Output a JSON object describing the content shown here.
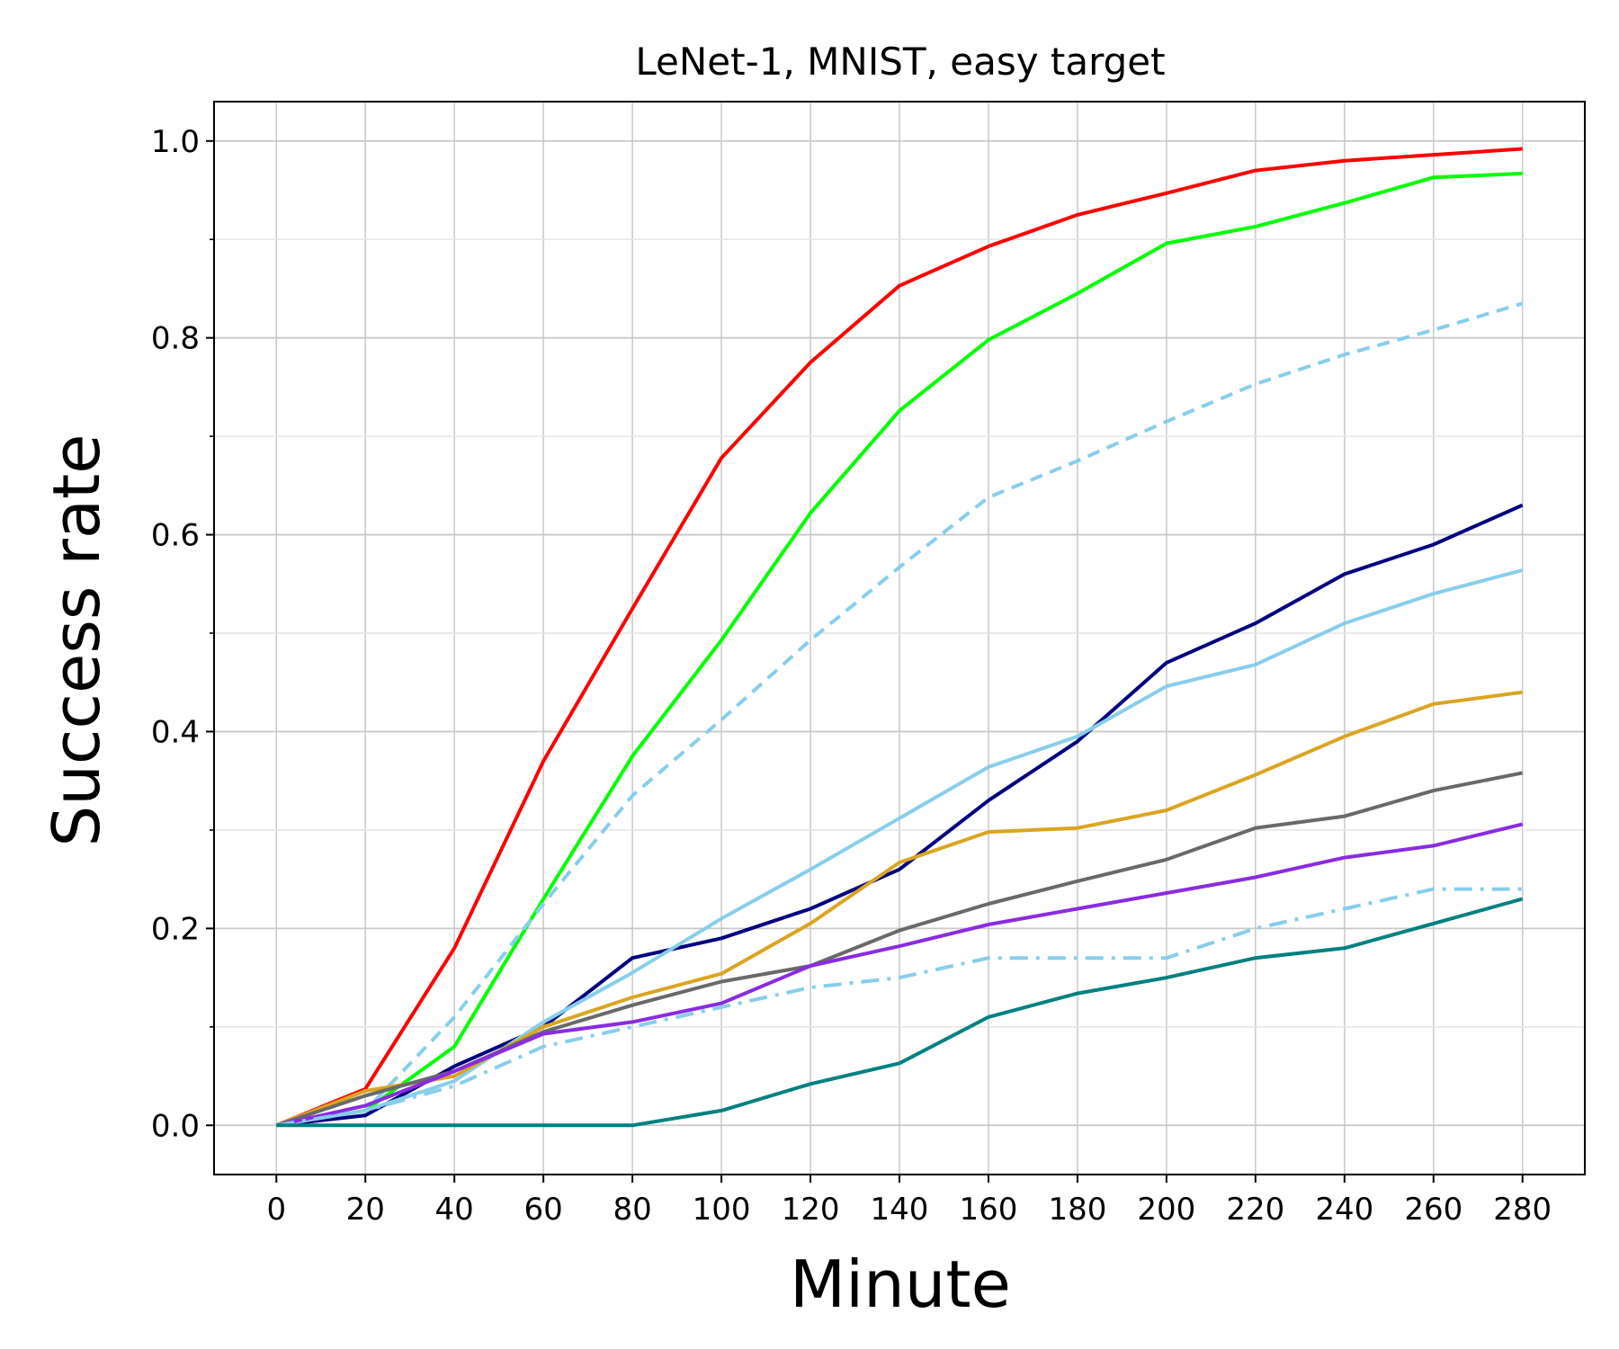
{
  "chart_data": {
    "type": "line",
    "title": "LeNet-1, MNIST, easy target",
    "xlabel": "Minute",
    "ylabel": "Success rate",
    "xlim": [
      -14,
      294
    ],
    "ylim": [
      -0.05,
      1.04
    ],
    "x": [
      0,
      20,
      40,
      60,
      80,
      100,
      120,
      140,
      160,
      180,
      200,
      220,
      240,
      260,
      280
    ],
    "xticks": [
      "0",
      "20",
      "40",
      "60",
      "80",
      "100",
      "120",
      "140",
      "160",
      "180",
      "200",
      "220",
      "240",
      "260",
      "280"
    ],
    "yticks": [
      "0.0",
      "0.2",
      "0.4",
      "0.6",
      "0.8",
      "1.0"
    ],
    "y_minor_ticks": [
      0.1,
      0.3,
      0.5,
      0.7,
      0.9
    ],
    "grid": true,
    "legend": "none",
    "series": [
      {
        "color": "#ff0000",
        "dash": "solid",
        "values": [
          0,
          0.037,
          0.18,
          0.37,
          0.525,
          0.678,
          0.775,
          0.853,
          0.893,
          0.925,
          0.947,
          0.97,
          0.98,
          0.986,
          0.992
        ]
      },
      {
        "color": "#00ff00",
        "dash": "solid",
        "values": [
          0,
          0.015,
          0.08,
          0.23,
          0.375,
          0.493,
          0.622,
          0.726,
          0.798,
          0.845,
          0.896,
          0.913,
          0.937,
          0.963,
          0.967
        ]
      },
      {
        "color": "#87ceeb",
        "dash": "dashed",
        "values": [
          0,
          0.015,
          0.11,
          0.225,
          0.335,
          0.412,
          0.493,
          0.567,
          0.638,
          0.675,
          0.715,
          0.753,
          0.783,
          0.808,
          0.835
        ]
      },
      {
        "color": "#000080",
        "dash": "solid",
        "values": [
          0,
          0.01,
          0.06,
          0.1,
          0.17,
          0.19,
          0.22,
          0.26,
          0.33,
          0.39,
          0.47,
          0.51,
          0.56,
          0.59,
          0.63
        ]
      },
      {
        "color": "#87ceeb",
        "dash": "solid",
        "values": [
          0,
          0.015,
          0.045,
          0.105,
          0.155,
          0.21,
          0.26,
          0.312,
          0.364,
          0.395,
          0.446,
          0.468,
          0.51,
          0.54,
          0.564
        ]
      },
      {
        "color": "#daa520",
        "dash": "solid",
        "values": [
          0,
          0.035,
          0.05,
          0.1,
          0.13,
          0.154,
          0.205,
          0.267,
          0.298,
          0.302,
          0.32,
          0.356,
          0.395,
          0.428,
          0.44
        ]
      },
      {
        "color": "#696969",
        "dash": "solid",
        "values": [
          0,
          0.03,
          0.055,
          0.095,
          0.122,
          0.146,
          0.162,
          0.198,
          0.225,
          0.248,
          0.27,
          0.302,
          0.314,
          0.34,
          0.358
        ]
      },
      {
        "color": "#8a2be2",
        "dash": "solid",
        "values": [
          0,
          0.02,
          0.055,
          0.093,
          0.105,
          0.124,
          0.162,
          0.182,
          0.204,
          0.22,
          0.236,
          0.252,
          0.272,
          0.284,
          0.306
        ]
      },
      {
        "color": "#87ceeb",
        "dash": "dashdot",
        "values": [
          0,
          0.015,
          0.04,
          0.08,
          0.1,
          0.12,
          0.14,
          0.15,
          0.17,
          0.17,
          0.17,
          0.2,
          0.22,
          0.24,
          0.24
        ]
      },
      {
        "color": "#008080",
        "dash": "solid",
        "values": [
          0,
          0,
          0,
          0,
          0,
          0.015,
          0.042,
          0.063,
          0.11,
          0.134,
          0.15,
          0.17,
          0.18,
          0.205,
          0.23
        ]
      }
    ]
  }
}
